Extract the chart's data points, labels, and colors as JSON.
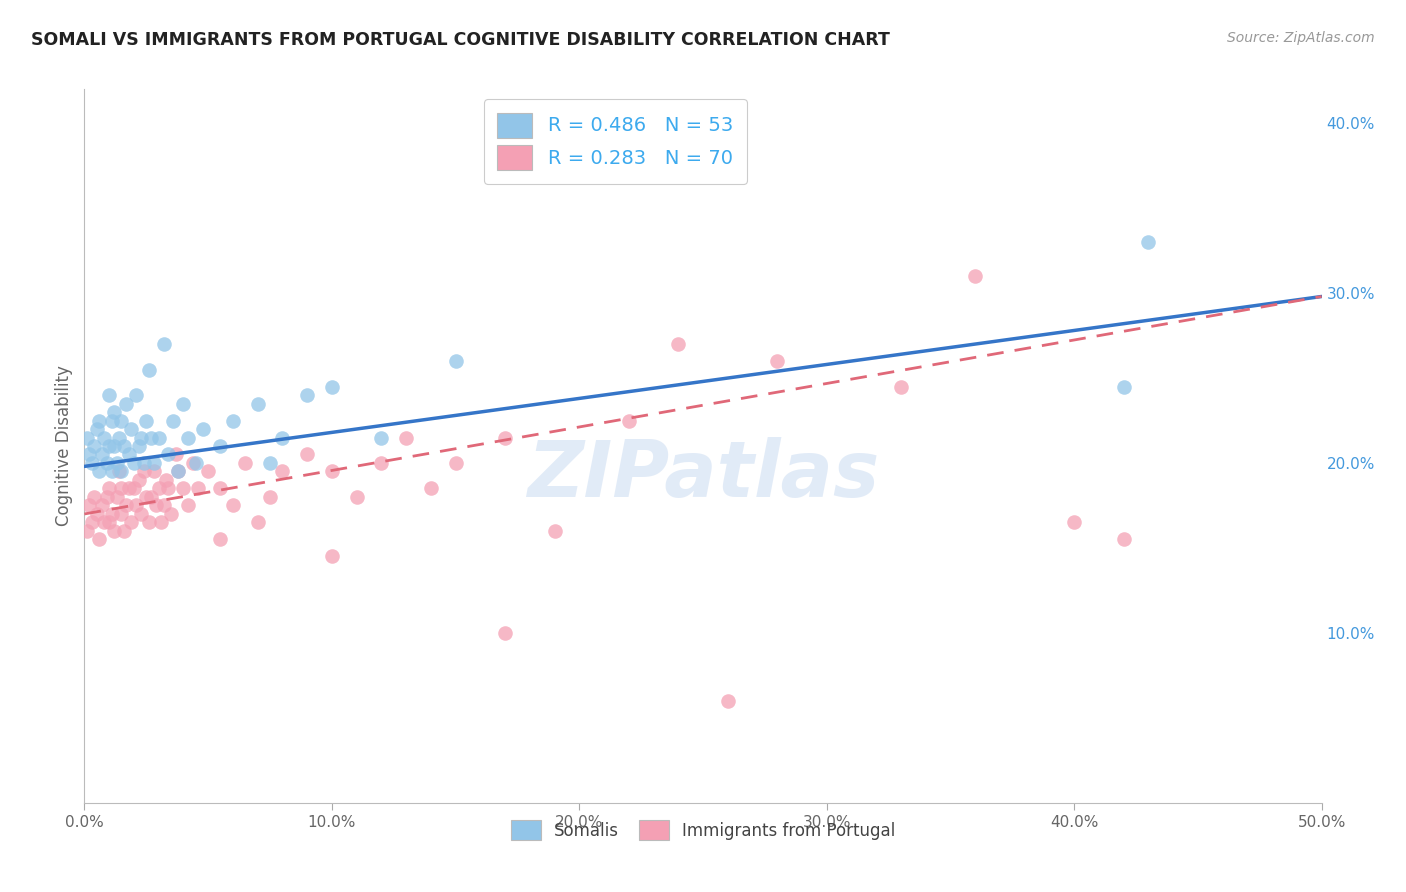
{
  "title": "SOMALI VS IMMIGRANTS FROM PORTUGAL COGNITIVE DISABILITY CORRELATION CHART",
  "source": "Source: ZipAtlas.com",
  "ylabel": "Cognitive Disability",
  "xlim": [
    0.0,
    0.5
  ],
  "ylim": [
    0.0,
    0.42
  ],
  "xticks": [
    0.0,
    0.1,
    0.2,
    0.3,
    0.4,
    0.5
  ],
  "yticks_right": [
    0.1,
    0.2,
    0.3,
    0.4
  ],
  "ytick_labels_right": [
    "10.0%",
    "20.0%",
    "30.0%",
    "40.0%"
  ],
  "xtick_labels": [
    "0.0%",
    "10.0%",
    "20.0%",
    "30.0%",
    "40.0%",
    "50.0%"
  ],
  "legend_blue_r": "R = 0.486",
  "legend_blue_n": "N = 53",
  "legend_pink_r": "R = 0.283",
  "legend_pink_n": "N = 70",
  "color_blue": "#92C5E8",
  "color_pink": "#F4A0B4",
  "color_blue_line": "#3575C8",
  "color_pink_line": "#E06878",
  "color_rvalue": "#333333",
  "color_nvalue": "#3DAAEE",
  "background_color": "#FFFFFF",
  "grid_color": "#CCCCCC",
  "watermark": "ZIPatlas",
  "blue_line_x0": 0.0,
  "blue_line_y0": 0.198,
  "blue_line_x1": 0.5,
  "blue_line_y1": 0.298,
  "pink_line_x0": 0.0,
  "pink_line_y0": 0.17,
  "pink_line_x1": 0.5,
  "pink_line_y1": 0.298,
  "somali_x": [
    0.001,
    0.002,
    0.003,
    0.004,
    0.005,
    0.006,
    0.006,
    0.007,
    0.008,
    0.009,
    0.01,
    0.01,
    0.011,
    0.011,
    0.012,
    0.012,
    0.013,
    0.014,
    0.015,
    0.015,
    0.016,
    0.017,
    0.018,
    0.019,
    0.02,
    0.021,
    0.022,
    0.023,
    0.024,
    0.025,
    0.026,
    0.027,
    0.028,
    0.03,
    0.032,
    0.034,
    0.036,
    0.038,
    0.04,
    0.042,
    0.045,
    0.048,
    0.055,
    0.06,
    0.07,
    0.075,
    0.08,
    0.09,
    0.1,
    0.12,
    0.15,
    0.42,
    0.43
  ],
  "somali_y": [
    0.215,
    0.205,
    0.2,
    0.21,
    0.22,
    0.195,
    0.225,
    0.205,
    0.215,
    0.2,
    0.24,
    0.21,
    0.195,
    0.225,
    0.21,
    0.23,
    0.2,
    0.215,
    0.195,
    0.225,
    0.21,
    0.235,
    0.205,
    0.22,
    0.2,
    0.24,
    0.21,
    0.215,
    0.2,
    0.225,
    0.255,
    0.215,
    0.2,
    0.215,
    0.27,
    0.205,
    0.225,
    0.195,
    0.235,
    0.215,
    0.2,
    0.22,
    0.21,
    0.225,
    0.235,
    0.2,
    0.215,
    0.24,
    0.245,
    0.215,
    0.26,
    0.245,
    0.33
  ],
  "portugal_x": [
    0.001,
    0.002,
    0.003,
    0.004,
    0.005,
    0.006,
    0.007,
    0.008,
    0.009,
    0.01,
    0.01,
    0.011,
    0.012,
    0.013,
    0.014,
    0.015,
    0.015,
    0.016,
    0.017,
    0.018,
    0.019,
    0.02,
    0.021,
    0.022,
    0.023,
    0.024,
    0.025,
    0.026,
    0.027,
    0.028,
    0.029,
    0.03,
    0.031,
    0.032,
    0.033,
    0.034,
    0.035,
    0.037,
    0.038,
    0.04,
    0.042,
    0.044,
    0.046,
    0.05,
    0.055,
    0.06,
    0.065,
    0.07,
    0.075,
    0.08,
    0.09,
    0.1,
    0.11,
    0.12,
    0.13,
    0.14,
    0.15,
    0.17,
    0.19,
    0.22,
    0.24,
    0.28,
    0.33,
    0.36,
    0.4,
    0.42,
    0.055,
    0.1,
    0.17,
    0.26
  ],
  "portugal_y": [
    0.16,
    0.175,
    0.165,
    0.18,
    0.17,
    0.155,
    0.175,
    0.165,
    0.18,
    0.165,
    0.185,
    0.17,
    0.16,
    0.18,
    0.195,
    0.17,
    0.185,
    0.16,
    0.175,
    0.185,
    0.165,
    0.185,
    0.175,
    0.19,
    0.17,
    0.195,
    0.18,
    0.165,
    0.18,
    0.195,
    0.175,
    0.185,
    0.165,
    0.175,
    0.19,
    0.185,
    0.17,
    0.205,
    0.195,
    0.185,
    0.175,
    0.2,
    0.185,
    0.195,
    0.185,
    0.175,
    0.2,
    0.165,
    0.18,
    0.195,
    0.205,
    0.195,
    0.18,
    0.2,
    0.215,
    0.185,
    0.2,
    0.215,
    0.16,
    0.225,
    0.27,
    0.26,
    0.245,
    0.31,
    0.165,
    0.155,
    0.155,
    0.145,
    0.1,
    0.06
  ]
}
